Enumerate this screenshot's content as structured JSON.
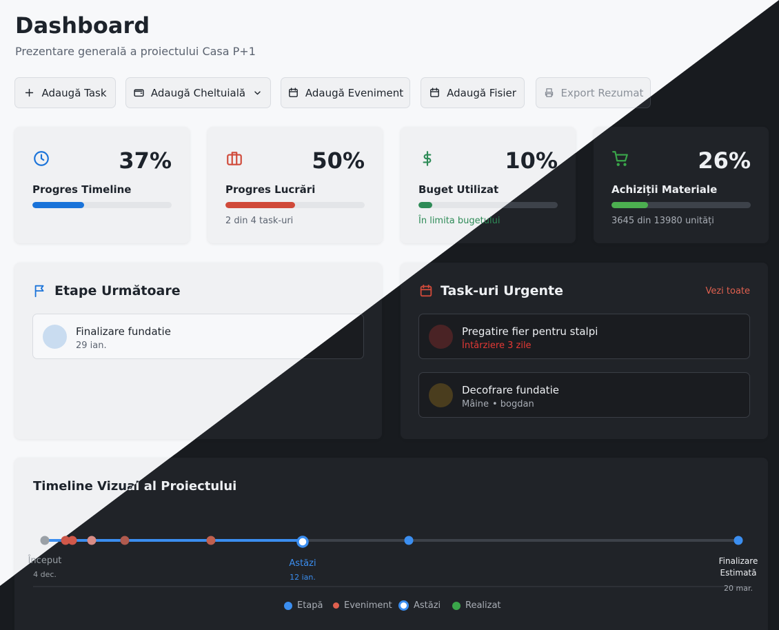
{
  "header": {
    "title": "Dashboard",
    "subtitle": "Prezentare generală a proiectului Casa P+1"
  },
  "buttons": [
    "Adaugă Task",
    "Adaugă Cheltuială",
    "Adaugă Eveniment",
    "Adaugă Fisier",
    "Export Rezumat"
  ],
  "stats": [
    {
      "value": "37%",
      "label": "Progres Timeline"
    },
    {
      "value": "50%",
      "label": "Progres Lucrări",
      "note": "2 din 4 task-uri"
    },
    {
      "value": "10%",
      "label": "Buget Utilizat",
      "note": "În limita bugetului"
    },
    {
      "value": "26%",
      "label": "Achiziții Materiale",
      "note": "3645 din 13980 unități"
    }
  ],
  "milestones": {
    "title": "Etape Următoare",
    "items": [
      {
        "name": "Finalizare fundatie",
        "date": "29 ian."
      }
    ]
  },
  "urgent": {
    "title": "Task-uri Urgente",
    "link": "Vezi toate",
    "items": [
      {
        "name": "Pregatire fier pentru stalpi",
        "meta": "Întârziere 3 zile"
      },
      {
        "name": "Decofrare fundatie",
        "meta": "Mâine",
        "person": "• bogdan"
      }
    ]
  },
  "timeline": {
    "title": "Timeline Vizual al Proiectului",
    "start": "Început",
    "start_date": "4 dec.",
    "today": "Astăzi",
    "today_date": "12 ian.",
    "end": "Finalizare Estimată",
    "end_date": "20 mar.",
    "legend": [
      "Etapă",
      "Eveniment",
      "Astăzi",
      "Realizat"
    ]
  }
}
